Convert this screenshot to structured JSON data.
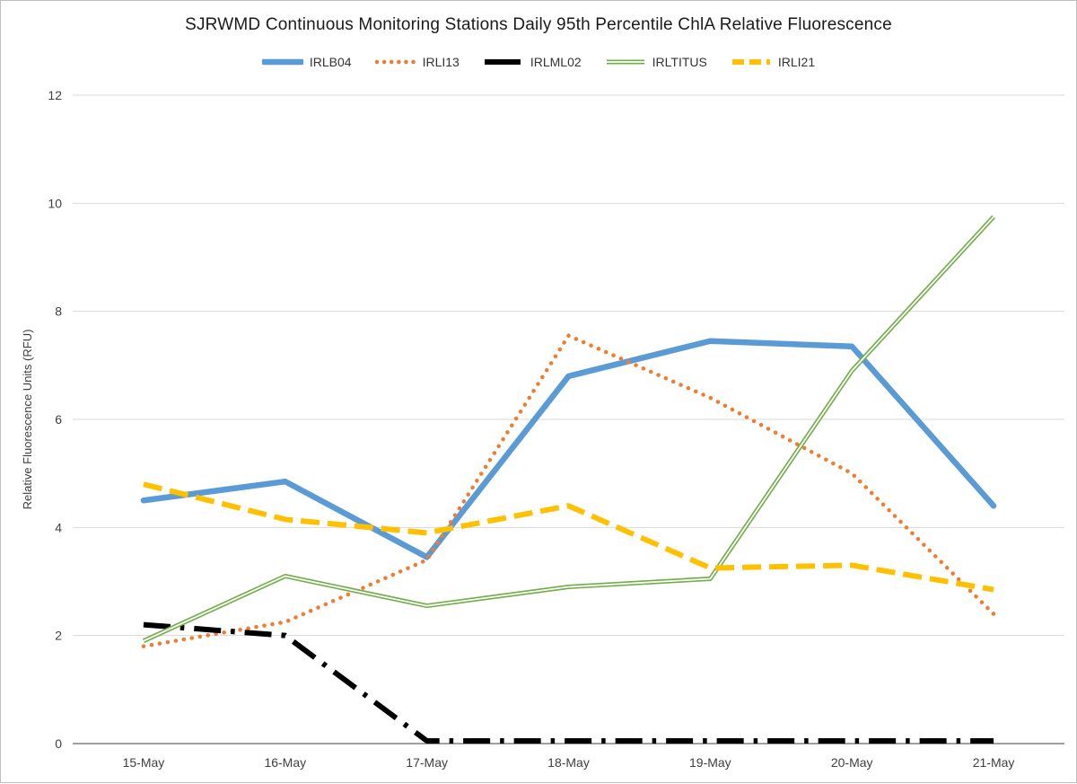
{
  "chart_data": {
    "type": "line",
    "title": "SJRWMD Continuous Monitoring Stations Daily 95th Percentile ChlA Relative Fluorescence",
    "ylabel": "Relative Fluorescence Units (RFU)",
    "categories": [
      "15-May",
      "16-May",
      "17-May",
      "18-May",
      "19-May",
      "20-May",
      "21-May"
    ],
    "ylim": [
      0,
      12
    ],
    "ytick_interval": 2,
    "yticks": [
      0,
      2,
      4,
      6,
      8,
      10,
      12
    ],
    "grid": "horizontal",
    "legend_position": "top",
    "series": [
      {
        "name": "IRLB04",
        "color": "#5B9BD5",
        "style": "solid",
        "values": [
          4.5,
          4.85,
          3.45,
          6.8,
          7.45,
          7.35,
          4.4
        ]
      },
      {
        "name": "IRLI13",
        "color": "#ED7D31",
        "style": "dotted",
        "values": [
          1.8,
          2.25,
          3.4,
          7.55,
          6.4,
          5.0,
          2.4
        ]
      },
      {
        "name": "IRLML02",
        "color": "#000000",
        "style": "dashdot",
        "values": [
          2.2,
          2.0,
          0.05,
          0.05,
          0.05,
          0.05,
          0.05
        ]
      },
      {
        "name": "IRLTITUS",
        "color": "#70AD47",
        "style": "double",
        "values": [
          1.9,
          3.1,
          2.55,
          2.9,
          3.05,
          6.9,
          9.75
        ]
      },
      {
        "name": "IRLI21",
        "color": "#FFC000",
        "style": "dashed",
        "values": [
          4.8,
          4.15,
          3.9,
          4.4,
          3.25,
          3.3,
          2.85
        ]
      }
    ],
    "colors": {
      "gridline": "#D9D9D9",
      "axis_line": "#808080",
      "tick_label": "#404040",
      "title": "#1a1a1a",
      "background": "#ffffff"
    }
  }
}
